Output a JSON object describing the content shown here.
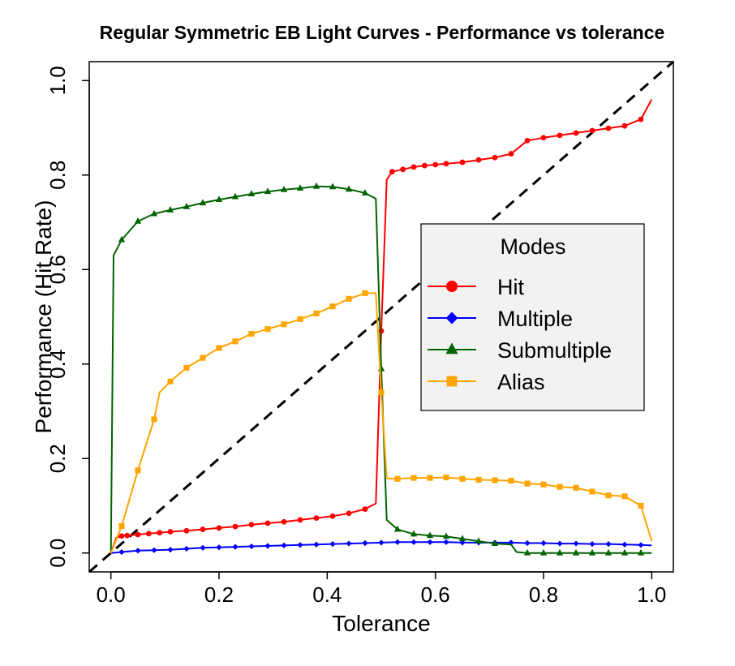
{
  "chart_data": {
    "type": "line",
    "title": "Regular Symmetric EB Light Curves - Performance vs tolerance",
    "xlabel": "Tolerance",
    "ylabel": "Performance (Hit Rate)",
    "xlim": [
      -0.04,
      1.04
    ],
    "ylim": [
      -0.04,
      1.04
    ],
    "xticks": [
      0.0,
      0.2,
      0.4,
      0.6,
      0.8,
      1.0
    ],
    "yticks": [
      0.0,
      0.2,
      0.4,
      0.6,
      0.8,
      1.0
    ],
    "xtick_labels": [
      "0.0",
      "0.2",
      "0.4",
      "0.6",
      "0.8",
      "1.0"
    ],
    "ytick_labels": [
      "0.0",
      "0.2",
      "0.4",
      "0.6",
      "0.8",
      "1.0"
    ],
    "reference_line": {
      "from": [
        -0.04,
        -0.04
      ],
      "to": [
        1.04,
        1.04
      ],
      "style": "dashed",
      "color": "#000000"
    },
    "legend": {
      "title": "Modes",
      "position": "right-center"
    },
    "series": [
      {
        "name": "Hit",
        "color": "#ff0000",
        "marker": "circle",
        "points": [
          [
            0.0,
            0.0
          ],
          [
            0.01,
            0.032
          ],
          [
            0.02,
            0.036
          ],
          [
            0.03,
            0.037
          ],
          [
            0.05,
            0.039
          ],
          [
            0.07,
            0.041
          ],
          [
            0.09,
            0.043
          ],
          [
            0.11,
            0.045
          ],
          [
            0.14,
            0.047
          ],
          [
            0.17,
            0.05
          ],
          [
            0.2,
            0.053
          ],
          [
            0.23,
            0.056
          ],
          [
            0.26,
            0.06
          ],
          [
            0.29,
            0.063
          ],
          [
            0.32,
            0.066
          ],
          [
            0.35,
            0.07
          ],
          [
            0.38,
            0.074
          ],
          [
            0.41,
            0.078
          ],
          [
            0.44,
            0.084
          ],
          [
            0.47,
            0.093
          ],
          [
            0.49,
            0.105
          ],
          [
            0.5,
            0.47
          ],
          [
            0.51,
            0.79
          ],
          [
            0.52,
            0.807
          ],
          [
            0.54,
            0.812
          ],
          [
            0.56,
            0.817
          ],
          [
            0.58,
            0.82
          ],
          [
            0.6,
            0.822
          ],
          [
            0.62,
            0.824
          ],
          [
            0.65,
            0.827
          ],
          [
            0.68,
            0.832
          ],
          [
            0.71,
            0.837
          ],
          [
            0.74,
            0.845
          ],
          [
            0.77,
            0.873
          ],
          [
            0.8,
            0.879
          ],
          [
            0.83,
            0.884
          ],
          [
            0.86,
            0.889
          ],
          [
            0.89,
            0.894
          ],
          [
            0.92,
            0.899
          ],
          [
            0.95,
            0.904
          ],
          [
            0.98,
            0.918
          ],
          [
            1.0,
            0.96
          ]
        ],
        "marked_points": [
          [
            0.02,
            0.036
          ],
          [
            0.03,
            0.037
          ],
          [
            0.05,
            0.039
          ],
          [
            0.07,
            0.041
          ],
          [
            0.09,
            0.043
          ],
          [
            0.11,
            0.045
          ],
          [
            0.14,
            0.047
          ],
          [
            0.17,
            0.05
          ],
          [
            0.2,
            0.053
          ],
          [
            0.23,
            0.056
          ],
          [
            0.26,
            0.06
          ],
          [
            0.29,
            0.063
          ],
          [
            0.32,
            0.066
          ],
          [
            0.35,
            0.07
          ],
          [
            0.38,
            0.074
          ],
          [
            0.41,
            0.078
          ],
          [
            0.44,
            0.084
          ],
          [
            0.47,
            0.093
          ],
          [
            0.5,
            0.47
          ],
          [
            0.52,
            0.807
          ],
          [
            0.54,
            0.812
          ],
          [
            0.56,
            0.817
          ],
          [
            0.58,
            0.82
          ],
          [
            0.6,
            0.822
          ],
          [
            0.62,
            0.824
          ],
          [
            0.65,
            0.827
          ],
          [
            0.68,
            0.832
          ],
          [
            0.71,
            0.837
          ],
          [
            0.74,
            0.845
          ],
          [
            0.77,
            0.873
          ],
          [
            0.8,
            0.879
          ],
          [
            0.83,
            0.884
          ],
          [
            0.86,
            0.889
          ],
          [
            0.89,
            0.894
          ],
          [
            0.92,
            0.899
          ],
          [
            0.95,
            0.904
          ],
          [
            0.98,
            0.918
          ]
        ]
      },
      {
        "name": "Multiple",
        "color": "#0000ff",
        "marker": "diamond",
        "points": [
          [
            0.0,
            0.0
          ],
          [
            0.02,
            0.002
          ],
          [
            0.05,
            0.005
          ],
          [
            0.08,
            0.006
          ],
          [
            0.11,
            0.007
          ],
          [
            0.14,
            0.009
          ],
          [
            0.17,
            0.011
          ],
          [
            0.2,
            0.012
          ],
          [
            0.23,
            0.013
          ],
          [
            0.26,
            0.014
          ],
          [
            0.29,
            0.015
          ],
          [
            0.32,
            0.016
          ],
          [
            0.35,
            0.017
          ],
          [
            0.38,
            0.018
          ],
          [
            0.41,
            0.019
          ],
          [
            0.44,
            0.02
          ],
          [
            0.47,
            0.021
          ],
          [
            0.5,
            0.022
          ],
          [
            0.53,
            0.023
          ],
          [
            0.56,
            0.023
          ],
          [
            0.59,
            0.023
          ],
          [
            0.62,
            0.023
          ],
          [
            0.65,
            0.022
          ],
          [
            0.68,
            0.022
          ],
          [
            0.71,
            0.022
          ],
          [
            0.74,
            0.022
          ],
          [
            0.77,
            0.021
          ],
          [
            0.8,
            0.021
          ],
          [
            0.83,
            0.02
          ],
          [
            0.86,
            0.02
          ],
          [
            0.89,
            0.019
          ],
          [
            0.92,
            0.019
          ],
          [
            0.95,
            0.018
          ],
          [
            0.98,
            0.017
          ],
          [
            1.0,
            0.016
          ]
        ],
        "marked_points": [
          [
            0.02,
            0.002
          ],
          [
            0.05,
            0.005
          ],
          [
            0.08,
            0.006
          ],
          [
            0.11,
            0.007
          ],
          [
            0.14,
            0.009
          ],
          [
            0.17,
            0.011
          ],
          [
            0.2,
            0.012
          ],
          [
            0.23,
            0.013
          ],
          [
            0.26,
            0.014
          ],
          [
            0.29,
            0.015
          ],
          [
            0.32,
            0.016
          ],
          [
            0.35,
            0.017
          ],
          [
            0.38,
            0.018
          ],
          [
            0.41,
            0.019
          ],
          [
            0.44,
            0.02
          ],
          [
            0.47,
            0.021
          ],
          [
            0.5,
            0.022
          ],
          [
            0.53,
            0.023
          ],
          [
            0.56,
            0.023
          ],
          [
            0.59,
            0.023
          ],
          [
            0.62,
            0.023
          ],
          [
            0.65,
            0.022
          ],
          [
            0.68,
            0.022
          ],
          [
            0.71,
            0.022
          ],
          [
            0.74,
            0.022
          ],
          [
            0.77,
            0.021
          ],
          [
            0.8,
            0.021
          ],
          [
            0.83,
            0.02
          ],
          [
            0.86,
            0.02
          ],
          [
            0.89,
            0.019
          ],
          [
            0.92,
            0.019
          ],
          [
            0.95,
            0.018
          ],
          [
            0.98,
            0.017
          ]
        ]
      },
      {
        "name": "Submultiple",
        "color": "#006400",
        "marker": "triangle",
        "points": [
          [
            0.0,
            0.0
          ],
          [
            0.005,
            0.63
          ],
          [
            0.02,
            0.663
          ],
          [
            0.05,
            0.702
          ],
          [
            0.08,
            0.718
          ],
          [
            0.11,
            0.726
          ],
          [
            0.14,
            0.733
          ],
          [
            0.17,
            0.741
          ],
          [
            0.2,
            0.748
          ],
          [
            0.23,
            0.754
          ],
          [
            0.26,
            0.76
          ],
          [
            0.29,
            0.765
          ],
          [
            0.32,
            0.769
          ],
          [
            0.35,
            0.772
          ],
          [
            0.38,
            0.776
          ],
          [
            0.41,
            0.775
          ],
          [
            0.44,
            0.77
          ],
          [
            0.47,
            0.762
          ],
          [
            0.49,
            0.75
          ],
          [
            0.5,
            0.39
          ],
          [
            0.51,
            0.07
          ],
          [
            0.53,
            0.05
          ],
          [
            0.56,
            0.04
          ],
          [
            0.59,
            0.037
          ],
          [
            0.62,
            0.035
          ],
          [
            0.65,
            0.03
          ],
          [
            0.68,
            0.025
          ],
          [
            0.71,
            0.02
          ],
          [
            0.74,
            0.018
          ],
          [
            0.75,
            0.002
          ],
          [
            0.77,
            0.0
          ],
          [
            0.8,
            0.0
          ],
          [
            0.83,
            0.0
          ],
          [
            0.86,
            0.0
          ],
          [
            0.89,
            0.0
          ],
          [
            0.92,
            0.0
          ],
          [
            0.95,
            0.0
          ],
          [
            0.98,
            0.0
          ],
          [
            1.0,
            0.0
          ]
        ],
        "marked_points": [
          [
            0.02,
            0.663
          ],
          [
            0.05,
            0.702
          ],
          [
            0.08,
            0.718
          ],
          [
            0.11,
            0.726
          ],
          [
            0.14,
            0.733
          ],
          [
            0.17,
            0.741
          ],
          [
            0.2,
            0.748
          ],
          [
            0.23,
            0.754
          ],
          [
            0.26,
            0.76
          ],
          [
            0.29,
            0.765
          ],
          [
            0.32,
            0.769
          ],
          [
            0.35,
            0.772
          ],
          [
            0.38,
            0.776
          ],
          [
            0.41,
            0.775
          ],
          [
            0.44,
            0.77
          ],
          [
            0.47,
            0.762
          ],
          [
            0.5,
            0.39
          ],
          [
            0.53,
            0.05
          ],
          [
            0.56,
            0.04
          ],
          [
            0.59,
            0.037
          ],
          [
            0.62,
            0.035
          ],
          [
            0.65,
            0.03
          ],
          [
            0.68,
            0.025
          ],
          [
            0.71,
            0.02
          ],
          [
            0.77,
            0.0
          ],
          [
            0.8,
            0.0
          ],
          [
            0.83,
            0.0
          ],
          [
            0.86,
            0.0
          ],
          [
            0.89,
            0.0
          ],
          [
            0.92,
            0.0
          ],
          [
            0.95,
            0.0
          ],
          [
            0.98,
            0.0
          ]
        ]
      },
      {
        "name": "Alias",
        "color": "#ffa500",
        "marker": "square",
        "points": [
          [
            0.0,
            0.0
          ],
          [
            0.02,
            0.057
          ],
          [
            0.05,
            0.175
          ],
          [
            0.08,
            0.283
          ],
          [
            0.09,
            0.34
          ],
          [
            0.11,
            0.363
          ],
          [
            0.14,
            0.392
          ],
          [
            0.17,
            0.413
          ],
          [
            0.2,
            0.434
          ],
          [
            0.23,
            0.448
          ],
          [
            0.26,
            0.464
          ],
          [
            0.29,
            0.474
          ],
          [
            0.32,
            0.484
          ],
          [
            0.35,
            0.495
          ],
          [
            0.38,
            0.507
          ],
          [
            0.41,
            0.522
          ],
          [
            0.44,
            0.538
          ],
          [
            0.47,
            0.55
          ],
          [
            0.49,
            0.55
          ],
          [
            0.5,
            0.34
          ],
          [
            0.51,
            0.158
          ],
          [
            0.53,
            0.157
          ],
          [
            0.56,
            0.159
          ],
          [
            0.59,
            0.159
          ],
          [
            0.62,
            0.16
          ],
          [
            0.65,
            0.157
          ],
          [
            0.68,
            0.155
          ],
          [
            0.71,
            0.154
          ],
          [
            0.74,
            0.153
          ],
          [
            0.77,
            0.147
          ],
          [
            0.8,
            0.145
          ],
          [
            0.83,
            0.14
          ],
          [
            0.86,
            0.138
          ],
          [
            0.89,
            0.13
          ],
          [
            0.92,
            0.122
          ],
          [
            0.95,
            0.12
          ],
          [
            0.98,
            0.1
          ],
          [
            1.0,
            0.025
          ]
        ],
        "marked_points": [
          [
            0.02,
            0.057
          ],
          [
            0.05,
            0.175
          ],
          [
            0.08,
            0.283
          ],
          [
            0.11,
            0.363
          ],
          [
            0.14,
            0.392
          ],
          [
            0.17,
            0.413
          ],
          [
            0.2,
            0.434
          ],
          [
            0.23,
            0.448
          ],
          [
            0.26,
            0.464
          ],
          [
            0.29,
            0.474
          ],
          [
            0.32,
            0.484
          ],
          [
            0.35,
            0.495
          ],
          [
            0.38,
            0.507
          ],
          [
            0.41,
            0.522
          ],
          [
            0.44,
            0.538
          ],
          [
            0.47,
            0.55
          ],
          [
            0.5,
            0.34
          ],
          [
            0.53,
            0.157
          ],
          [
            0.56,
            0.159
          ],
          [
            0.59,
            0.159
          ],
          [
            0.62,
            0.16
          ],
          [
            0.65,
            0.157
          ],
          [
            0.68,
            0.155
          ],
          [
            0.71,
            0.154
          ],
          [
            0.74,
            0.153
          ],
          [
            0.77,
            0.147
          ],
          [
            0.8,
            0.145
          ],
          [
            0.83,
            0.14
          ],
          [
            0.86,
            0.138
          ],
          [
            0.89,
            0.13
          ],
          [
            0.92,
            0.122
          ],
          [
            0.95,
            0.12
          ],
          [
            0.98,
            0.1
          ]
        ]
      }
    ]
  }
}
